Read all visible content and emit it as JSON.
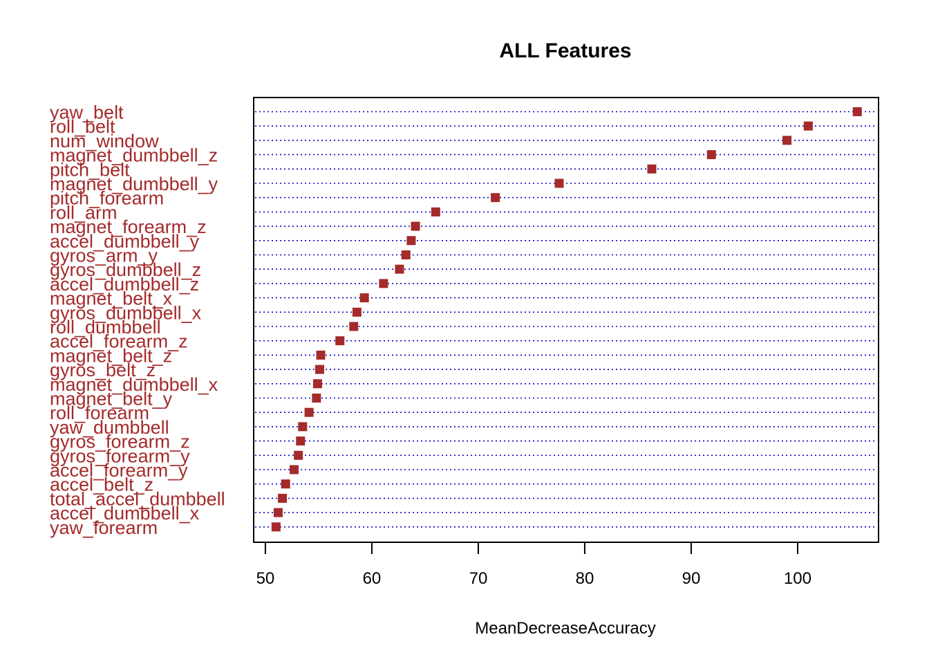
{
  "chart_data": {
    "type": "dot",
    "title": "ALL Features",
    "xlabel": "MeanDecreaseAccuracy",
    "ylabel": "",
    "xlim": [
      48.9,
      107.6
    ],
    "xticks": [
      "50",
      "60",
      "70",
      "80",
      "90",
      "100"
    ],
    "grid": "dotted horizontal lines",
    "colors": {
      "point": "#a52a2a",
      "label": "#a52a2a",
      "grid": "#0000cd",
      "axis": "#000000"
    },
    "categories": [
      "yaw_belt",
      "roll_belt",
      "num_window",
      "magnet_dumbbell_z",
      "pitch_belt",
      "magnet_dumbbell_y",
      "pitch_forearm",
      "roll_arm",
      "magnet_forearm_z",
      "accel_dumbbell_y",
      "gyros_arm_y",
      "gyros_dumbbell_z",
      "accel_dumbbell_z",
      "magnet_belt_x",
      "gyros_dumbbell_x",
      "roll_dumbbell",
      "accel_forearm_z",
      "magnet_belt_z",
      "gyros_belt_z",
      "magnet_dumbbell_x",
      "magnet_belt_y",
      "roll_forearm",
      "yaw_dumbbell",
      "gyros_forearm_z",
      "gyros_forearm_y",
      "accel_forearm_y",
      "accel_belt_z",
      "total_accel_dumbbell",
      "accel_dumbbell_x",
      "yaw_forearm"
    ],
    "values": [
      105.6,
      101.0,
      99.0,
      91.9,
      86.3,
      77.6,
      71.6,
      66.0,
      64.1,
      63.7,
      63.2,
      62.6,
      61.1,
      59.3,
      58.6,
      58.3,
      57.0,
      55.2,
      55.1,
      54.9,
      54.8,
      54.1,
      53.5,
      53.3,
      53.1,
      52.7,
      51.9,
      51.6,
      51.2,
      51.0
    ]
  }
}
